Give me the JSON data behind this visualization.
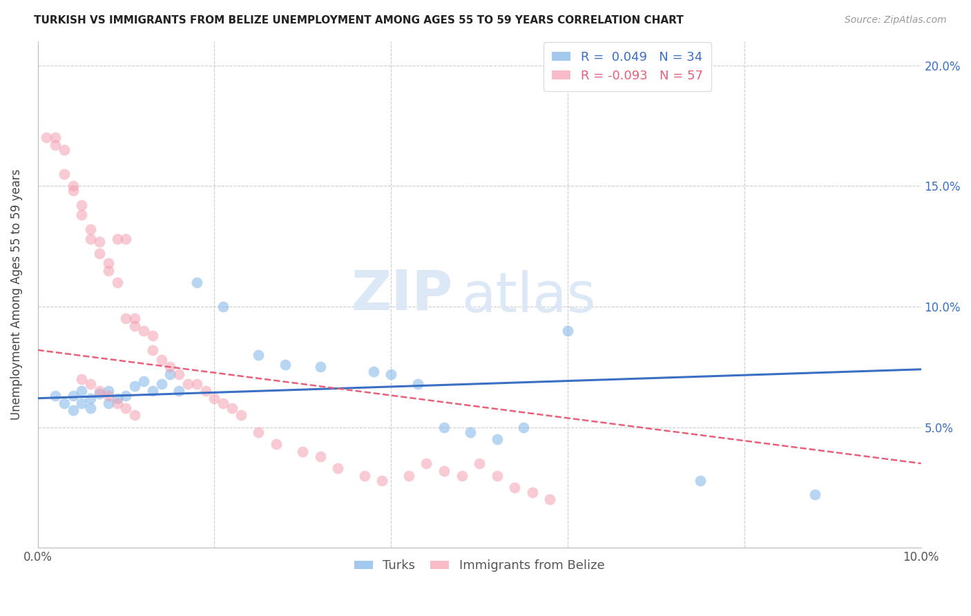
{
  "title": "TURKISH VS IMMIGRANTS FROM BELIZE UNEMPLOYMENT AMONG AGES 55 TO 59 YEARS CORRELATION CHART",
  "source": "Source: ZipAtlas.com",
  "ylabel": "Unemployment Among Ages 55 to 59 years",
  "xlim": [
    0.0,
    0.1
  ],
  "ylim": [
    0.0,
    0.21
  ],
  "y_ticks": [
    0.0,
    0.05,
    0.1,
    0.15,
    0.2
  ],
  "y_tick_labels": [
    "",
    "5.0%",
    "10.0%",
    "15.0%",
    "20.0%"
  ],
  "turks_color": "#7EB3E8",
  "belize_color": "#F4A0B0",
  "turks_R": 0.049,
  "turks_N": 34,
  "belize_R": -0.093,
  "belize_N": 57,
  "turks_scatter_x": [
    0.002,
    0.003,
    0.004,
    0.004,
    0.005,
    0.005,
    0.006,
    0.006,
    0.007,
    0.008,
    0.008,
    0.009,
    0.01,
    0.011,
    0.012,
    0.013,
    0.014,
    0.015,
    0.016,
    0.018,
    0.021,
    0.025,
    0.028,
    0.032,
    0.038,
    0.04,
    0.043,
    0.046,
    0.049,
    0.052,
    0.055,
    0.06,
    0.075,
    0.088
  ],
  "turks_scatter_y": [
    0.063,
    0.06,
    0.057,
    0.063,
    0.06,
    0.065,
    0.058,
    0.062,
    0.064,
    0.06,
    0.065,
    0.062,
    0.063,
    0.067,
    0.069,
    0.065,
    0.068,
    0.072,
    0.065,
    0.11,
    0.1,
    0.08,
    0.076,
    0.075,
    0.073,
    0.072,
    0.068,
    0.05,
    0.048,
    0.045,
    0.05,
    0.09,
    0.028,
    0.022
  ],
  "turks_trend_x": [
    0.0,
    0.1
  ],
  "turks_trend_y": [
    0.062,
    0.074
  ],
  "belize_scatter_x": [
    0.001,
    0.002,
    0.002,
    0.003,
    0.003,
    0.004,
    0.004,
    0.005,
    0.005,
    0.006,
    0.006,
    0.007,
    0.007,
    0.008,
    0.008,
    0.009,
    0.009,
    0.01,
    0.01,
    0.011,
    0.011,
    0.012,
    0.013,
    0.013,
    0.014,
    0.015,
    0.016,
    0.017,
    0.018,
    0.019,
    0.02,
    0.021,
    0.022,
    0.023,
    0.025,
    0.027,
    0.03,
    0.032,
    0.034,
    0.037,
    0.039,
    0.042,
    0.044,
    0.046,
    0.048,
    0.05,
    0.052,
    0.054,
    0.056,
    0.058,
    0.005,
    0.006,
    0.007,
    0.008,
    0.009,
    0.01,
    0.011
  ],
  "belize_scatter_y": [
    0.17,
    0.17,
    0.167,
    0.165,
    0.155,
    0.15,
    0.148,
    0.142,
    0.138,
    0.132,
    0.128,
    0.127,
    0.122,
    0.118,
    0.115,
    0.11,
    0.128,
    0.128,
    0.095,
    0.095,
    0.092,
    0.09,
    0.088,
    0.082,
    0.078,
    0.075,
    0.072,
    0.068,
    0.068,
    0.065,
    0.062,
    0.06,
    0.058,
    0.055,
    0.048,
    0.043,
    0.04,
    0.038,
    0.033,
    0.03,
    0.028,
    0.03,
    0.035,
    0.032,
    0.03,
    0.035,
    0.03,
    0.025,
    0.023,
    0.02,
    0.07,
    0.068,
    0.065,
    0.063,
    0.06,
    0.058,
    0.055
  ],
  "belize_trend_x": [
    0.0,
    0.1
  ],
  "belize_trend_y": [
    0.082,
    0.035
  ],
  "watermark_zip": "ZIP",
  "watermark_atlas": "atlas",
  "background_color": "#ffffff"
}
